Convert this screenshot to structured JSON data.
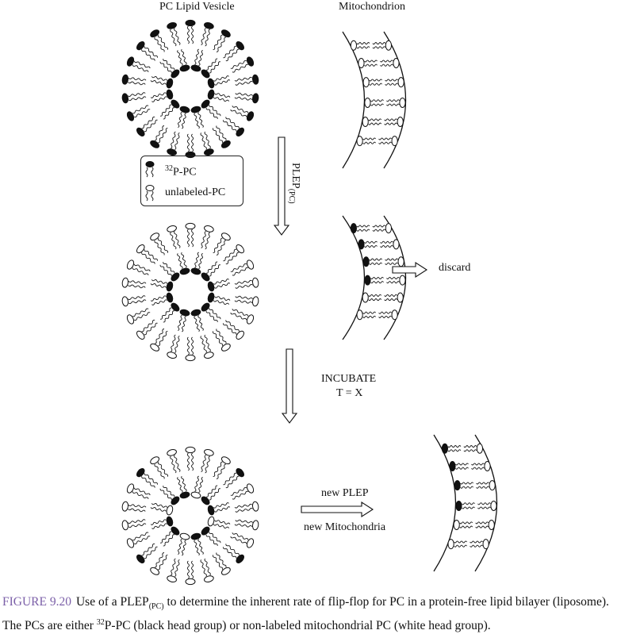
{
  "labels": {
    "vesicle_title": "PC Lipid Vesicle",
    "mito_title": "Mitochondrion",
    "plep_arrow_main": "PLEP",
    "plep_arrow_sub": "(PC)",
    "discard": "discard",
    "incubate_line1": "INCUBATE",
    "incubate_line2": "T = X",
    "new_plep": "new PLEP",
    "new_mito": "new Mitochondria"
  },
  "legend": {
    "labeled_sup": "32",
    "labeled_text": "P-PC",
    "unlabeled_text": "unlabeled-PC"
  },
  "caption": {
    "figure_id": "FIGURE 9.20",
    "text_a": "Use of a PLEP",
    "text_a_sub": "(PC)",
    "text_b": " to determine the inherent rate of flip-flop for PC in a protein-free lipid bilayer (liposome). The PCs are either ",
    "sup": "32",
    "text_c": "P-PC (black head group) or non-labeled mitochondrial PC (white head group)."
  },
  "colors": {
    "ink": "#111111",
    "figure_id": "#7b5fa8",
    "background": "#ffffff"
  }
}
